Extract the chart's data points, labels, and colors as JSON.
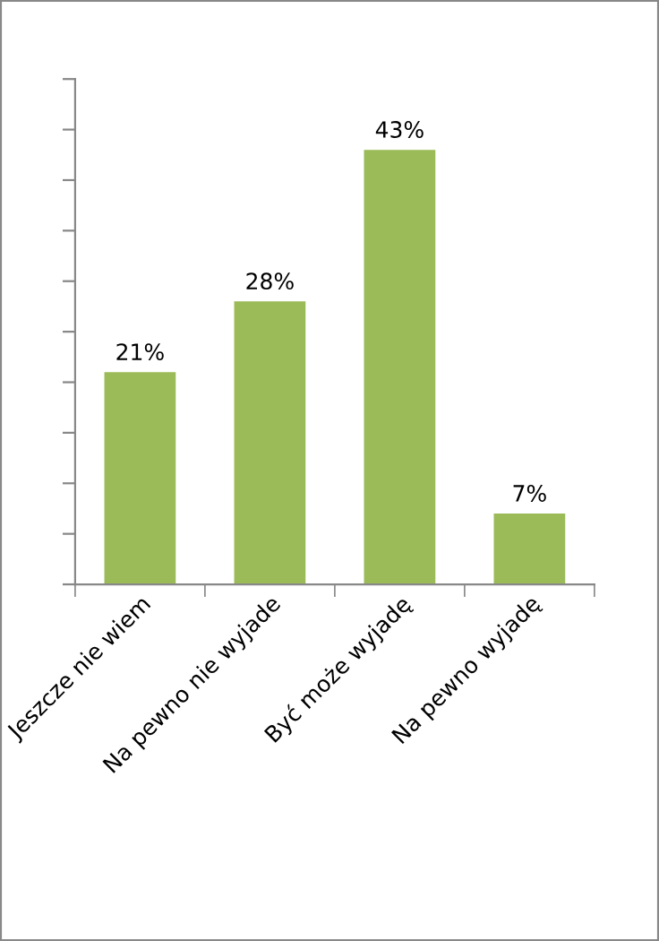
{
  "chart_data": {
    "type": "bar",
    "categories": [
      "Jeszcze nie wiem",
      "Na pewno nie wyjade",
      "Być może wyjadę",
      "Na pewno wyjadę"
    ],
    "values": [
      21,
      28,
      43,
      7
    ],
    "value_labels": [
      "21%",
      "28%",
      "43%",
      "7%"
    ],
    "color": "#9bbb59",
    "ylim": [
      0,
      50
    ],
    "yticks": [
      {
        "value": 0,
        "label": null
      },
      {
        "value": 5,
        "label": null
      },
      {
        "value": 10,
        "label": null
      },
      {
        "value": 15,
        "label": null
      },
      {
        "value": 20,
        "label": null
      },
      {
        "value": 25,
        "label": null
      },
      {
        "value": 30,
        "label": null
      },
      {
        "value": 35,
        "label": null
      },
      {
        "value": 40,
        "label": null
      },
      {
        "value": 45,
        "label": null
      },
      {
        "value": 50,
        "label": null
      }
    ],
    "tick_labels": "x",
    "grid": false
  }
}
